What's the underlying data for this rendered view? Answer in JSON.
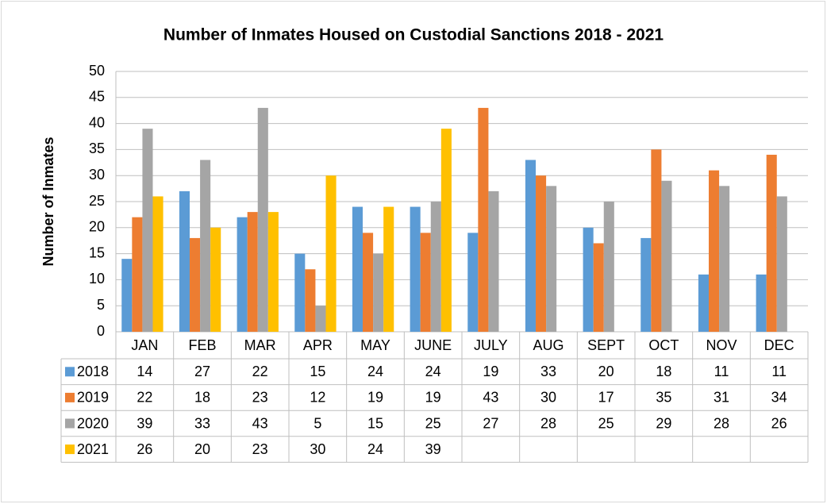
{
  "chart_data": {
    "type": "bar",
    "title": "Number of Inmates Housed on Custodial Sanctions 2018 - 2021",
    "y_label": "Number of Inmates",
    "categories": [
      "JAN",
      "FEB",
      "MAR",
      "APR",
      "MAY",
      "JUNE",
      "JULY",
      "AUG",
      "SEPT",
      "OCT",
      "NOV",
      "DEC"
    ],
    "series": [
      {
        "name": "2018",
        "color": "#5b9bd5",
        "values": [
          14,
          27,
          22,
          15,
          24,
          24,
          19,
          33,
          20,
          18,
          11,
          11
        ]
      },
      {
        "name": "2019",
        "color": "#ed7d31",
        "values": [
          22,
          18,
          23,
          12,
          19,
          19,
          43,
          30,
          17,
          35,
          31,
          34
        ]
      },
      {
        "name": "2020",
        "color": "#a5a5a5",
        "values": [
          39,
          33,
          43,
          5,
          15,
          25,
          27,
          28,
          25,
          29,
          28,
          26
        ]
      },
      {
        "name": "2021",
        "color": "#ffc000",
        "values": [
          26,
          20,
          23,
          30,
          24,
          39,
          null,
          null,
          null,
          null,
          null,
          null
        ]
      }
    ],
    "ylim": [
      0,
      50
    ],
    "yticks": [
      0,
      5,
      10,
      15,
      20,
      25,
      30,
      35,
      40,
      45,
      50
    ],
    "grid": true,
    "data_table": true
  }
}
